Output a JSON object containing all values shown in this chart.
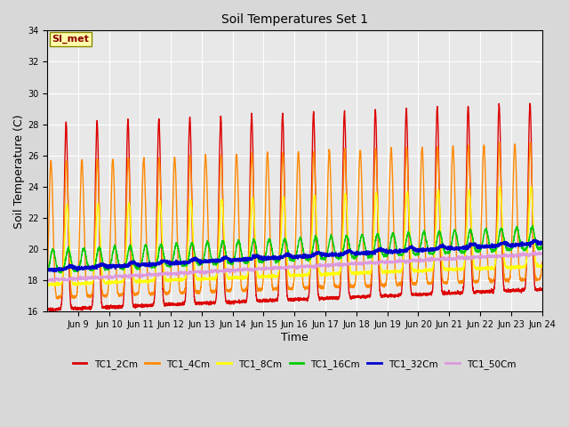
{
  "title": "Soil Temperatures Set 1",
  "xlabel": "Time",
  "ylabel": "Soil Temperature (C)",
  "ylim": [
    16,
    34
  ],
  "yticks": [
    16,
    18,
    20,
    22,
    24,
    26,
    28,
    30,
    32,
    34
  ],
  "bg_color": "#d8d8d8",
  "plot_bg": "#e8e8e8",
  "series": [
    {
      "label": "TC1_2Cm",
      "color": "#dd0000",
      "lw": 1.0
    },
    {
      "label": "TC1_4Cm",
      "color": "#ff8800",
      "lw": 1.0
    },
    {
      "label": "TC1_8Cm",
      "color": "#ffff00",
      "lw": 1.0
    },
    {
      "label": "TC1_16Cm",
      "color": "#00cc00",
      "lw": 1.0
    },
    {
      "label": "TC1_32Cm",
      "color": "#0000cc",
      "lw": 1.5
    },
    {
      "label": "TC1_50Cm",
      "color": "#dd99dd",
      "lw": 1.0
    }
  ],
  "xtick_labels": [
    "Jun 9",
    "Jun 10",
    "Jun 11",
    "Jun 12",
    "Jun 13",
    "Jun 14",
    "Jun 15",
    "Jun 16",
    "Jun 17",
    "Jun 18",
    "Jun 19",
    "Jun 20",
    "Jun 21",
    "Jun 22",
    "Jun 23",
    "Jun 24"
  ],
  "grid_color": "#ffffff",
  "legend_colors": [
    "#dd0000",
    "#ff8800",
    "#ffff00",
    "#00cc00",
    "#0000cc",
    "#dd99dd"
  ],
  "legend_labels": [
    "TC1_2Cm",
    "TC1_4Cm",
    "TC1_8Cm",
    "TC1_16Cm",
    "TC1_32Cm",
    "TC1_50Cm"
  ],
  "annotation_text": "SI_met",
  "figsize": [
    6.4,
    4.8
  ],
  "dpi": 100
}
